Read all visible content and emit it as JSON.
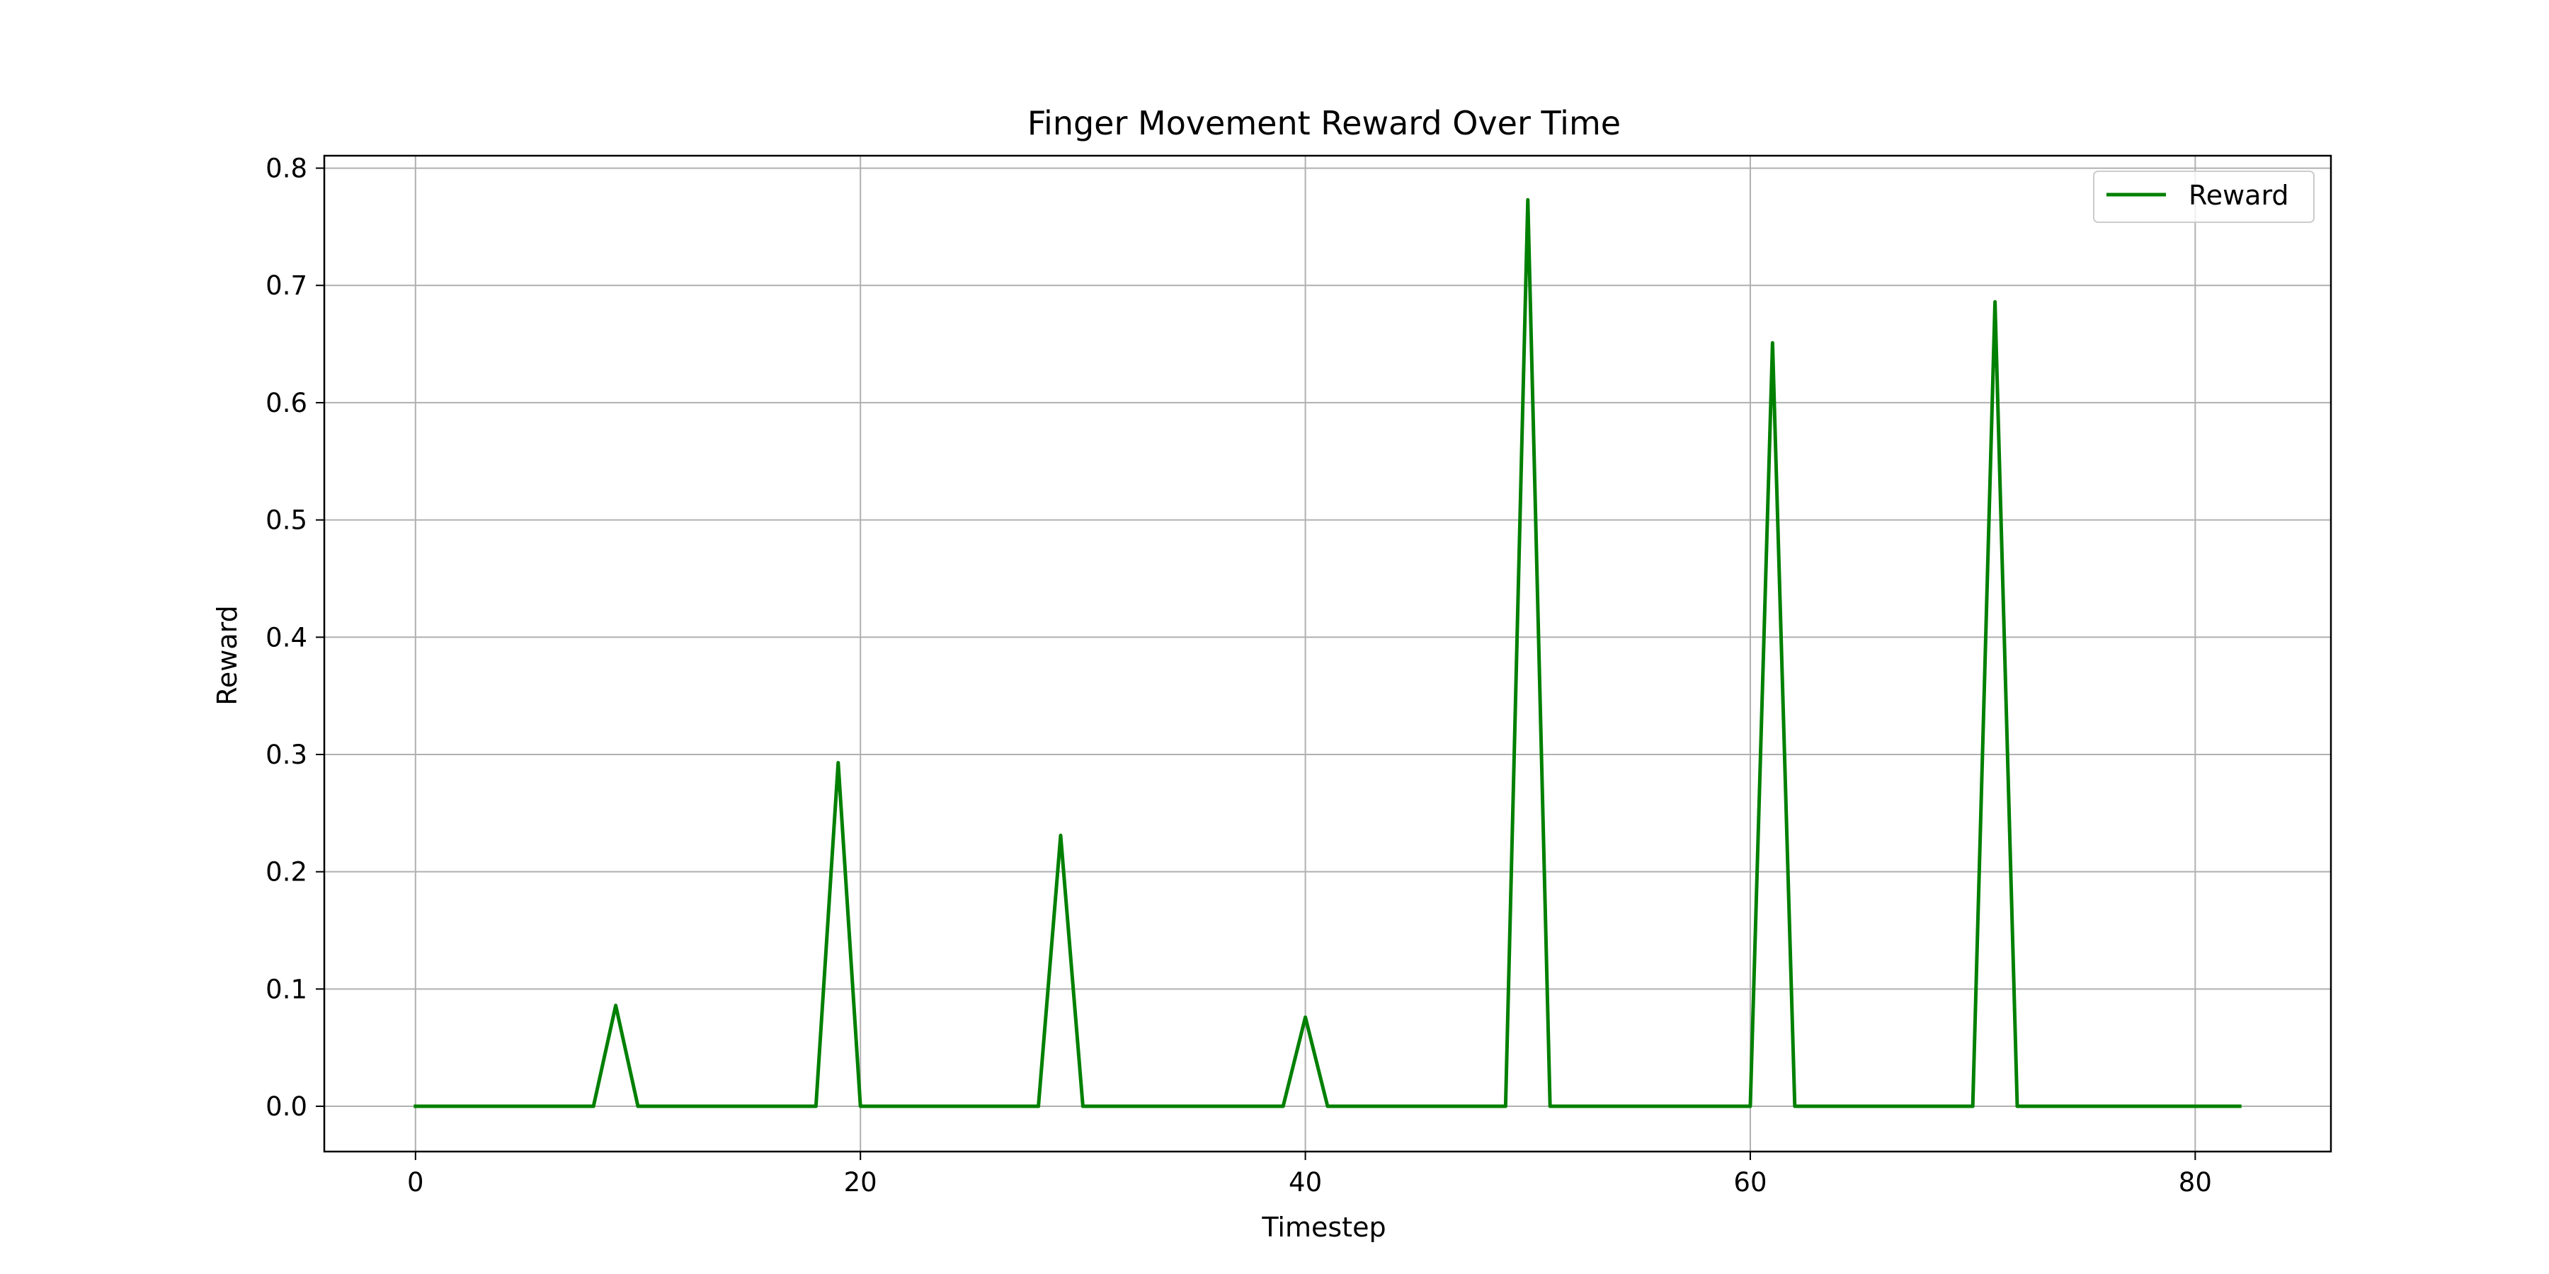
{
  "chart_data": {
    "type": "line",
    "title": "Finger Movement Reward Over Time",
    "xlabel": "Timestep",
    "ylabel": "Reward",
    "xlim": [
      -4.1,
      86.1
    ],
    "ylim": [
      -0.0386,
      0.8106
    ],
    "xticks": [
      0,
      20,
      40,
      60,
      80
    ],
    "yticks": [
      0.0,
      0.1,
      0.2,
      0.3,
      0.4,
      0.5,
      0.6,
      0.7,
      0.8
    ],
    "xtick_labels": [
      "0",
      "20",
      "40",
      "60",
      "80"
    ],
    "ytick_labels": [
      "0.0",
      "0.1",
      "0.2",
      "0.3",
      "0.4",
      "0.5",
      "0.6",
      "0.7",
      "0.8"
    ],
    "grid": true,
    "legend_position": "top-right",
    "series": [
      {
        "name": "Reward",
        "color": "#008000",
        "x": [
          0,
          1,
          2,
          3,
          4,
          5,
          6,
          7,
          8,
          9,
          10,
          11,
          12,
          13,
          14,
          15,
          16,
          17,
          18,
          19,
          20,
          21,
          22,
          23,
          24,
          25,
          26,
          27,
          28,
          29,
          30,
          31,
          32,
          33,
          34,
          35,
          36,
          37,
          38,
          39,
          40,
          41,
          42,
          43,
          44,
          45,
          46,
          47,
          48,
          49,
          50,
          51,
          52,
          53,
          54,
          55,
          56,
          57,
          58,
          59,
          60,
          61,
          62,
          63,
          64,
          65,
          66,
          67,
          68,
          69,
          70,
          71,
          72,
          73,
          74,
          75,
          76,
          77,
          78,
          79,
          80,
          81,
          82
        ],
        "y": [
          0,
          0,
          0,
          0,
          0,
          0,
          0,
          0,
          0,
          0.086,
          0,
          0,
          0,
          0,
          0,
          0,
          0,
          0,
          0,
          0.293,
          0,
          0,
          0,
          0,
          0,
          0,
          0,
          0,
          0,
          0.231,
          0,
          0,
          0,
          0,
          0,
          0,
          0,
          0,
          0,
          0,
          0.076,
          0,
          0,
          0,
          0,
          0,
          0,
          0,
          0,
          0,
          0.773,
          0,
          0,
          0,
          0,
          0,
          0,
          0,
          0,
          0,
          0,
          0.651,
          0,
          0,
          0,
          0,
          0,
          0,
          0,
          0,
          0,
          0.686,
          0,
          0,
          0,
          0,
          0,
          0,
          0,
          0,
          0,
          0,
          0
        ]
      }
    ]
  }
}
